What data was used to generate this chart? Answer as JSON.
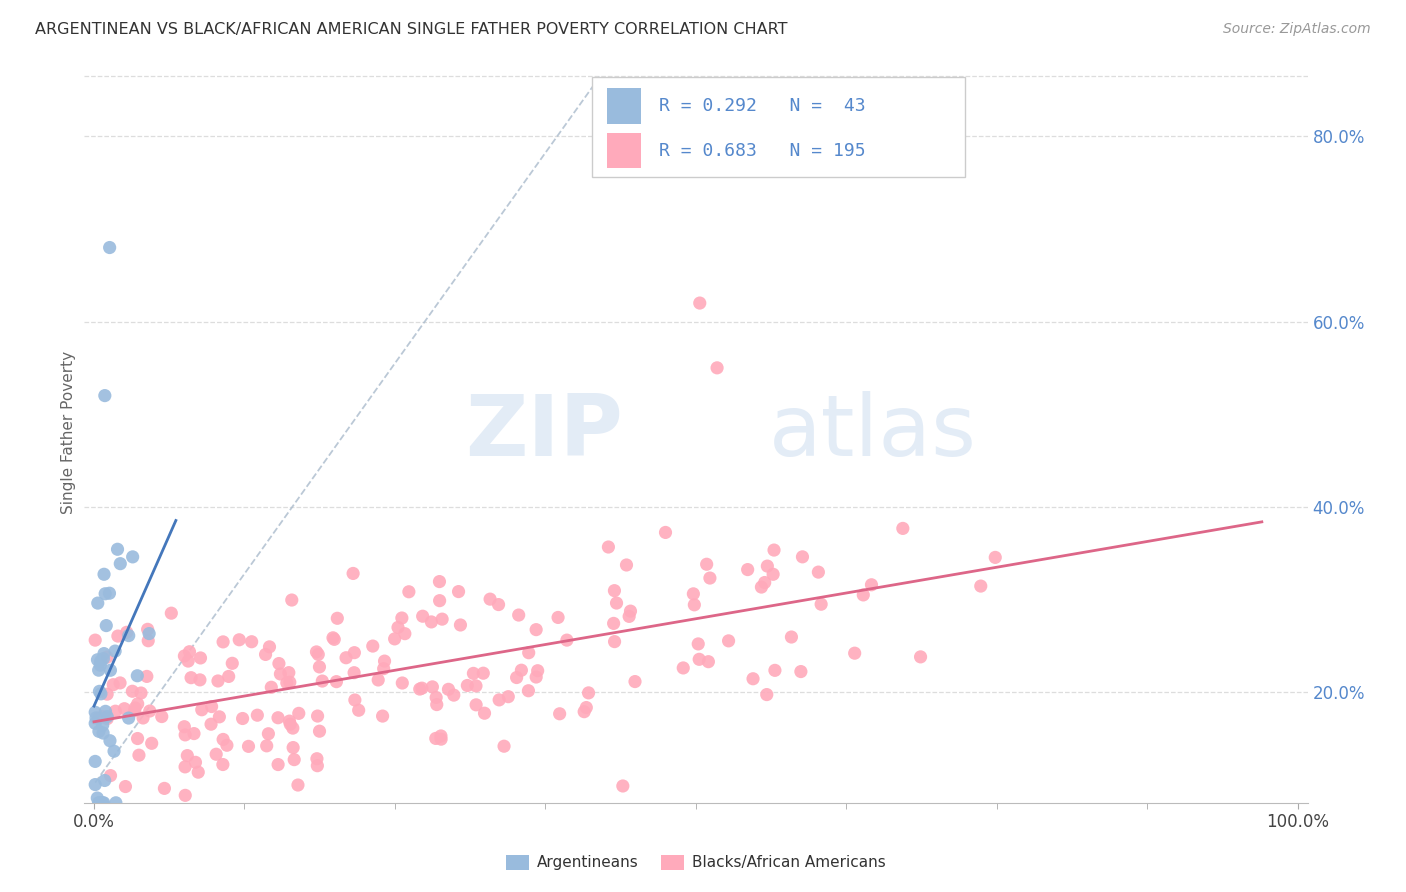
{
  "title": "ARGENTINEAN VS BLACK/AFRICAN AMERICAN SINGLE FATHER POVERTY CORRELATION CHART",
  "source": "Source: ZipAtlas.com",
  "ylabel": "Single Father Poverty",
  "right_yticks": [
    "20.0%",
    "40.0%",
    "60.0%",
    "80.0%"
  ],
  "right_ytick_vals": [
    0.2,
    0.4,
    0.6,
    0.8
  ],
  "watermark_zip": "ZIP",
  "watermark_atlas": "atlas",
  "legend_label_1": "Argentineans",
  "legend_label_2": "Blacks/African Americans",
  "R1": 0.292,
  "N1": 43,
  "R2": 0.683,
  "N2": 195,
  "color_blue_scatter": "#99BBDD",
  "color_pink_scatter": "#FFAABB",
  "color_blue_text": "#5588CC",
  "color_legend_text": "#5588CC",
  "background_color": "#FFFFFF",
  "grid_color": "#DDDDDD",
  "grid_linestyle": "--",
  "dashed_line_color": "#AABBCC",
  "blue_trend_color": "#4477BB",
  "pink_trend_color": "#DD6688",
  "xlim": [
    0.0,
    1.0
  ],
  "ylim": [
    0.08,
    0.88
  ],
  "xticks": [
    0.0,
    1.0
  ],
  "xtick_labels": [
    "0.0%",
    "100.0%"
  ]
}
